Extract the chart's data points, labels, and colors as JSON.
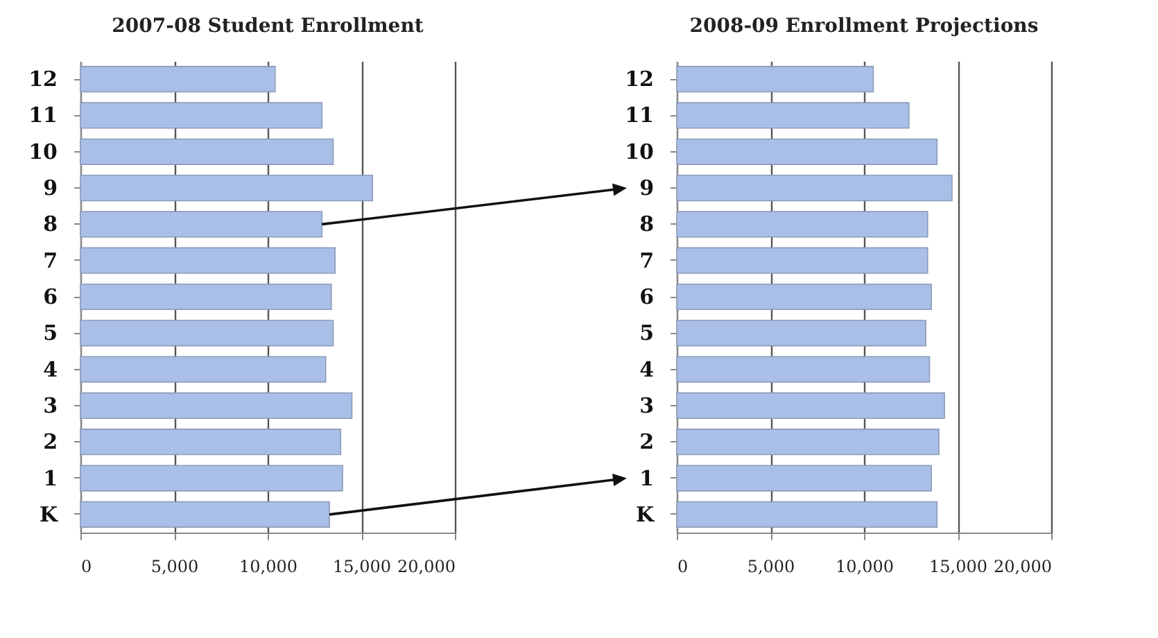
{
  "chart_data": [
    {
      "type": "bar",
      "orientation": "horizontal",
      "title": "2007-08 Student Enrollment",
      "categories": [
        "12",
        "11",
        "10",
        "9",
        "8",
        "7",
        "6",
        "5",
        "4",
        "3",
        "2",
        "1",
        "K"
      ],
      "values": [
        10400,
        12900,
        13500,
        15600,
        12900,
        13600,
        13400,
        13500,
        13100,
        14500,
        13900,
        14000,
        13300
      ],
      "color": "#a9bfe8",
      "xlim": [
        0,
        20000
      ],
      "xticks": [
        0,
        {
          "value": 5000,
          "label": "5,000"
        },
        {
          "value": 10000,
          "label": "10,000"
        },
        {
          "value": 15000,
          "label": "15,000"
        },
        {
          "value": 20000,
          "label": "20,000"
        }
      ],
      "grid": "x"
    },
    {
      "type": "bar",
      "orientation": "horizontal",
      "title": "2008-09 Enrollment Projections",
      "categories": [
        "12",
        "11",
        "10",
        "9",
        "8",
        "7",
        "6",
        "5",
        "4",
        "3",
        "2",
        "1",
        "K"
      ],
      "values": [
        10500,
        12400,
        13900,
        14700,
        13400,
        13400,
        13600,
        13300,
        13500,
        14300,
        14000,
        13600,
        13900
      ],
      "color": "#a9bfe8",
      "xlim": [
        0,
        20000
      ],
      "xticks": [
        0,
        {
          "value": 5000,
          "label": "5,000"
        },
        {
          "value": 10000,
          "label": "10,000"
        },
        {
          "value": 15000,
          "label": "15,000"
        },
        {
          "value": 20000,
          "label": "20,000"
        }
      ],
      "grid": "x"
    }
  ]
}
